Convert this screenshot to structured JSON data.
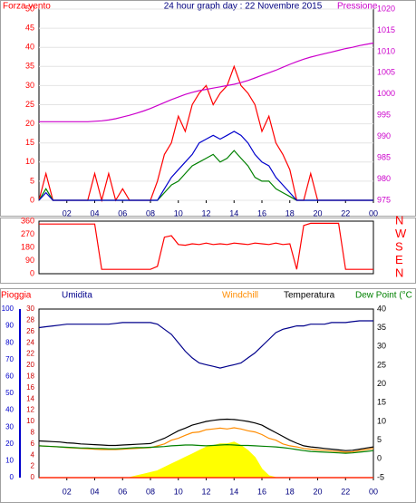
{
  "chart_data": [
    {
      "type": "line",
      "title": "24 hour graph day : 22 Novembre 2015",
      "ylabel": "Forza vento",
      "y2label": "Pressione",
      "x": [
        0,
        0.5,
        1,
        1.5,
        2,
        2.5,
        3,
        3.5,
        4,
        4.5,
        5,
        5.5,
        6,
        6.5,
        7,
        7.5,
        8,
        8.5,
        9,
        9.5,
        10,
        10.5,
        11,
        11.5,
        12,
        12.5,
        13,
        13.5,
        14,
        14.5,
        15,
        15.5,
        16,
        16.5,
        17,
        17.5,
        18,
        18.5,
        19,
        19.5,
        20,
        20.5,
        21,
        21.5,
        22,
        22.5,
        23,
        23.5,
        24
      ],
      "xlim": [
        0,
        24
      ],
      "xticks": [
        {
          "value": 2,
          "label": "02"
        },
        {
          "value": 4,
          "label": "04"
        },
        {
          "value": 6,
          "label": "06"
        },
        {
          "value": 8,
          "label": "08"
        },
        10,
        12,
        14,
        16,
        18,
        20,
        22,
        {
          "value": 24,
          "label": "00"
        }
      ],
      "ylim": [
        0,
        50
      ],
      "yticks": [
        0,
        5,
        10,
        15,
        20,
        25,
        30,
        35,
        40,
        45,
        50
      ],
      "y2lim": [
        975,
        1020
      ],
      "y2ticks": [
        975,
        980,
        985,
        990,
        995,
        1000,
        1005,
        1010,
        1015,
        1020
      ],
      "grid": true,
      "series": [
        {
          "color": "#ff0000",
          "values": [
            0,
            7,
            0,
            0,
            0,
            0,
            0,
            0,
            7,
            0,
            7,
            0,
            3,
            0,
            0,
            0,
            0,
            5,
            12,
            15,
            22,
            18,
            25,
            28,
            30,
            25,
            28,
            30,
            35,
            30,
            28,
            25,
            18,
            22,
            15,
            12,
            8,
            0,
            0,
            7,
            0,
            0,
            0,
            0,
            0,
            0,
            0,
            0,
            0
          ]
        },
        {
          "color": "#008000",
          "values": [
            0,
            3,
            0,
            0,
            0,
            0,
            0,
            0,
            0,
            0,
            0,
            0,
            0,
            0,
            0,
            0,
            0,
            0,
            2,
            4,
            5,
            7,
            9,
            10,
            11,
            12,
            10,
            11,
            13,
            11,
            9,
            6,
            5,
            5,
            3,
            2,
            1,
            0,
            0,
            0,
            0,
            0,
            0,
            0,
            0,
            0,
            0,
            0,
            0
          ]
        },
        {
          "color": "#0000cc",
          "values": [
            0,
            2,
            0,
            0,
            0,
            0,
            0,
            0,
            0,
            0,
            0,
            0,
            0,
            0,
            0,
            0,
            0,
            0,
            3,
            6,
            8,
            10,
            12,
            15,
            16,
            17,
            16,
            17,
            18,
            17,
            15,
            12,
            10,
            9,
            6,
            4,
            2,
            0,
            0,
            0,
            0,
            0,
            0,
            0,
            0,
            0,
            0,
            0,
            0
          ]
        },
        {
          "color": "#cc00cc",
          "axis": "y2",
          "values": [
            993.5,
            993.5,
            993.5,
            993.5,
            993.5,
            993.5,
            993.5,
            993.5,
            993.6,
            993.7,
            993.9,
            994.2,
            994.6,
            995,
            995.5,
            996,
            996.6,
            997.3,
            998,
            998.7,
            999.3,
            999.9,
            1000.4,
            1000.8,
            1001.1,
            1001.4,
            1001.7,
            1002,
            1002.3,
            1002.7,
            1003.2,
            1003.8,
            1004.4,
            1005,
            1005.6,
            1006.3,
            1007,
            1007.6,
            1008.2,
            1008.7,
            1009.1,
            1009.5,
            1009.9,
            1010.3,
            1010.7,
            1011,
            1011.4,
            1011.7,
            1012
          ]
        }
      ]
    },
    {
      "type": "line",
      "x": [
        0,
        0.5,
        1,
        1.5,
        2,
        2.5,
        3,
        3.5,
        4,
        4.5,
        5,
        5.5,
        6,
        6.5,
        7,
        7.5,
        8,
        8.5,
        9,
        9.5,
        10,
        10.5,
        11,
        11.5,
        12,
        12.5,
        13,
        13.5,
        14,
        14.5,
        15,
        15.5,
        16,
        16.5,
        17,
        17.5,
        18,
        18.5,
        19,
        19.5,
        20,
        20.5,
        21,
        21.5,
        22,
        22.5,
        23,
        23.5,
        24
      ],
      "xlim": [
        0,
        24
      ],
      "ylim": [
        0,
        360
      ],
      "yticks": [
        0,
        90,
        180,
        270,
        360
      ],
      "y2lim": [
        0,
        360
      ],
      "y2ticks": [
        {
          "value": 0,
          "label": "N"
        },
        {
          "value": 90,
          "label": "E"
        },
        {
          "value": 180,
          "label": "S"
        },
        {
          "value": 270,
          "label": "W"
        },
        {
          "value": 360,
          "label": "N"
        }
      ],
      "series": [
        {
          "color": "#ff0000",
          "values": [
            340,
            340,
            340,
            340,
            340,
            340,
            340,
            340,
            340,
            30,
            30,
            30,
            30,
            30,
            30,
            30,
            30,
            50,
            250,
            260,
            200,
            195,
            205,
            200,
            210,
            200,
            205,
            200,
            210,
            205,
            200,
            210,
            205,
            200,
            210,
            200,
            205,
            30,
            330,
            345,
            345,
            345,
            345,
            345,
            30,
            30,
            30,
            30,
            30
          ]
        }
      ]
    },
    {
      "type": "line",
      "x": [
        0,
        0.5,
        1,
        1.5,
        2,
        2.5,
        3,
        3.5,
        4,
        4.5,
        5,
        5.5,
        6,
        6.5,
        7,
        7.5,
        8,
        8.5,
        9,
        9.5,
        10,
        10.5,
        11,
        11.5,
        12,
        12.5,
        13,
        13.5,
        14,
        14.5,
        15,
        15.5,
        16,
        16.5,
        17,
        17.5,
        18,
        18.5,
        19,
        19.5,
        20,
        20.5,
        21,
        21.5,
        22,
        22.5,
        23,
        23.5,
        24
      ],
      "xlim": [
        0,
        24
      ],
      "xticks": [
        {
          "value": 2,
          "label": "02"
        },
        {
          "value": 4,
          "label": "04"
        },
        {
          "value": 6,
          "label": "06"
        },
        {
          "value": 8,
          "label": "08"
        },
        10,
        12,
        14,
        16,
        18,
        20,
        22,
        {
          "value": 24,
          "label": "00"
        }
      ],
      "ylim": [
        0,
        100
      ],
      "yticks": [
        0,
        10,
        20,
        30,
        40,
        50,
        60,
        70,
        80,
        90,
        100
      ],
      "y3lim": [
        0,
        30
      ],
      "y3ticks": [
        0,
        2,
        4,
        6,
        8,
        10,
        12,
        14,
        16,
        18,
        20,
        22,
        24,
        26,
        28,
        30
      ],
      "y2lim": [
        -5,
        40
      ],
      "y2ticks": [
        -5,
        0,
        5,
        10,
        15,
        20,
        25,
        30,
        35,
        40
      ],
      "series": [
        {
          "name": "Pioggia",
          "color": "#ff0000",
          "axis": "y3",
          "values": [
            0,
            0,
            0,
            0,
            0,
            0,
            0,
            0,
            0,
            0,
            0,
            0,
            0,
            0,
            0,
            0,
            0,
            0,
            0,
            0,
            0,
            0,
            0,
            0,
            0,
            0,
            0,
            0,
            0,
            0,
            0,
            0,
            0,
            0,
            0,
            0,
            0,
            0,
            0,
            0,
            0,
            0,
            0,
            0,
            0,
            0,
            0,
            0,
            0
          ]
        },
        {
          "name": "Umidita",
          "color": "#00008b",
          "values": [
            89,
            89.5,
            90,
            90.5,
            91,
            91,
            91,
            91,
            91,
            91,
            91,
            91.5,
            92,
            92,
            92,
            92,
            92,
            91,
            88,
            85,
            80,
            75,
            71,
            68,
            67,
            66,
            65,
            66,
            67,
            68,
            71,
            74,
            78,
            82,
            86,
            88,
            89,
            90,
            90,
            91,
            91,
            91,
            92,
            92,
            92,
            92.5,
            93,
            93,
            93
          ]
        },
        {
          "name": "Windchill",
          "color": "#ff8c00",
          "axis": "y2",
          "values": [
            3.5,
            3.4,
            3.3,
            3.2,
            3,
            2.9,
            2.8,
            2.7,
            2.6,
            2.5,
            2.5,
            2.5,
            2.6,
            2.7,
            2.8,
            2.9,
            3,
            3.5,
            4,
            5,
            5.5,
            6.3,
            7,
            7.2,
            7.8,
            8,
            8.2,
            8,
            8.3,
            8,
            7.5,
            7.2,
            6.5,
            5.5,
            5,
            4,
            3.5,
            3.2,
            2.8,
            2.6,
            2.4,
            2.3,
            2.1,
            2,
            1.8,
            1.9,
            2.2,
            2.5,
            2.8
          ]
        },
        {
          "name": "Temperatura",
          "color": "#000000",
          "axis": "y2",
          "values": [
            4.8,
            4.7,
            4.6,
            4.5,
            4.3,
            4.2,
            4,
            3.9,
            3.8,
            3.7,
            3.6,
            3.6,
            3.7,
            3.8,
            3.9,
            4,
            4.1,
            4.8,
            5.5,
            6.5,
            7.5,
            8.2,
            9,
            9.5,
            10,
            10.3,
            10.5,
            10.6,
            10.5,
            10.3,
            10,
            9.6,
            9,
            8,
            7,
            6,
            5,
            4.2,
            3.5,
            3.2,
            3,
            2.8,
            2.6,
            2.4,
            2.2,
            2.3,
            2.6,
            2.9,
            3.2
          ]
        },
        {
          "name": "Dew Point (°C",
          "color": "#008000",
          "axis": "y2",
          "values": [
            3.5,
            3.4,
            3.3,
            3.2,
            3.1,
            3,
            2.9,
            2.9,
            2.8,
            2.8,
            2.7,
            2.7,
            2.8,
            2.9,
            3,
            3,
            3.1,
            3.2,
            3.3,
            3.5,
            3.6,
            3.7,
            3.7,
            3.6,
            3.5,
            3.6,
            3.7,
            3.8,
            3.7,
            3.6,
            3.6,
            3.5,
            3.4,
            3.3,
            3.2,
            3,
            2.8,
            2.5,
            2.2,
            2,
            1.9,
            1.8,
            1.7,
            1.6,
            1.5,
            1.6,
            1.8,
            2,
            2.2
          ]
        },
        {
          "color": "#ffff00",
          "area": true,
          "values": [
            0,
            0,
            0,
            0,
            0,
            0,
            0,
            0,
            0,
            0,
            0,
            0,
            0,
            0,
            1,
            2,
            3,
            4,
            6,
            8,
            10,
            12,
            14,
            16,
            18,
            19,
            20,
            20,
            21,
            19,
            16,
            12,
            5,
            1,
            0,
            0,
            0,
            0,
            0,
            0,
            0,
            0,
            0,
            0,
            0,
            0,
            0,
            0,
            0
          ]
        }
      ]
    }
  ]
}
